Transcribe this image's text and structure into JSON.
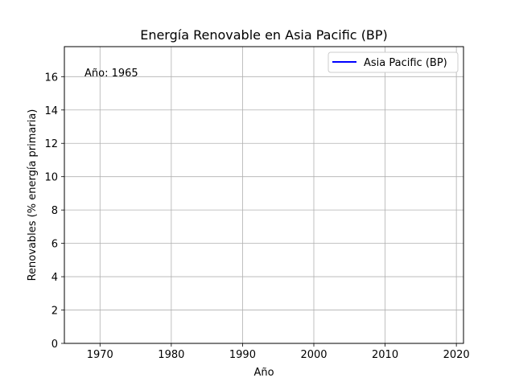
{
  "chart_data": {
    "type": "line",
    "title": "Energía Renovable en Asia Pacific (BP)",
    "xlabel": "Año",
    "ylabel": "Renovables (% energía primaria)",
    "xlim": [
      1965,
      2021
    ],
    "ylim": [
      0,
      17.8
    ],
    "xticks": [
      1970,
      1980,
      1990,
      2000,
      2010,
      2020
    ],
    "yticks": [
      0,
      2,
      4,
      6,
      8,
      10,
      12,
      14,
      16
    ],
    "grid": true,
    "legend_position": "top-right",
    "annotation": "Año: 1965",
    "series": [
      {
        "name": "Asia Pacific (BP)",
        "color": "#0000ff",
        "x": [],
        "y": []
      }
    ]
  }
}
